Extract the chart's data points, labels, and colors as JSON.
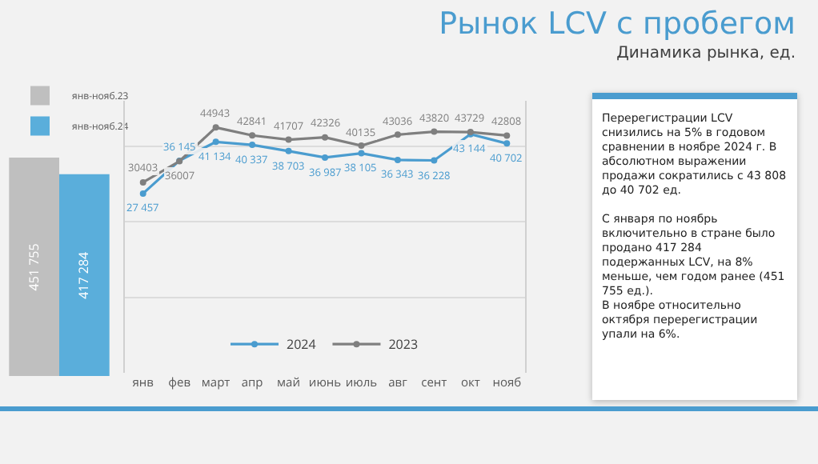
{
  "chart_data": [
    {
      "type": "bar",
      "categories": [
        null
      ],
      "series": [
        {
          "name": "янв-нояб.23",
          "color": "#bfbfbf",
          "values": [
            451755
          ],
          "value_labels": [
            "451 755"
          ]
        },
        {
          "name": "янв-нояб.24",
          "color": "#5aaedb",
          "values": [
            417284
          ],
          "value_labels": [
            "417 284"
          ]
        }
      ],
      "ylim": [
        0,
        460000
      ],
      "tick_labels": false,
      "legend": "top"
    },
    {
      "type": "line",
      "categories": [
        "янв",
        "фев",
        "март",
        "апр",
        "май",
        "июнь",
        "июль",
        "авг",
        "сент",
        "окт",
        "нояб"
      ],
      "series": [
        {
          "name": "2024",
          "color": "#4a9ccf",
          "values": [
            27457,
            36145,
            41134,
            40337,
            38703,
            36987,
            38105,
            36343,
            36228,
            43144,
            40702
          ],
          "value_labels": [
            "27 457",
            "36 145",
            "41 134",
            "40 337",
            "38 703",
            "36 987",
            "38 105",
            "36 343",
            "36 228",
            "43 144",
            "40 702"
          ]
        },
        {
          "name": "2023",
          "color": "#7f7f7f",
          "values": [
            30403,
            36007,
            44943,
            42841,
            41707,
            42326,
            40135,
            43036,
            43820,
            43729,
            42808
          ],
          "value_labels": [
            "30403",
            "36007",
            "44943",
            "42841",
            "41707",
            "42326",
            "40135",
            "43036",
            "43820",
            "43729",
            "42808"
          ]
        }
      ],
      "ylim": [
        -20000,
        52000
      ],
      "grid": "y",
      "tick_labels": "x",
      "marker": "circle",
      "line_style": "solid",
      "legend": "bottom"
    },
    {
      "type": "other",
      "title": "Рынок LCV с пробегом",
      "subtitle": "Динамика рынка, ед.",
      "annotations": [
        "Перерегистрации LCV снизились на 5% в годовом сравнении в ноябре 2024 г. В абсолютном выражении продажи сократились с 43 808 до 40 702 ед.",
        "С января по ноябрь включительно в стране было продано 417 284 подержанных LCV, на 8% меньше, чем годом ранее (451 755 ед.).",
        "В ноябре относительно октября перерегистрации упали на 6%."
      ]
    }
  ]
}
